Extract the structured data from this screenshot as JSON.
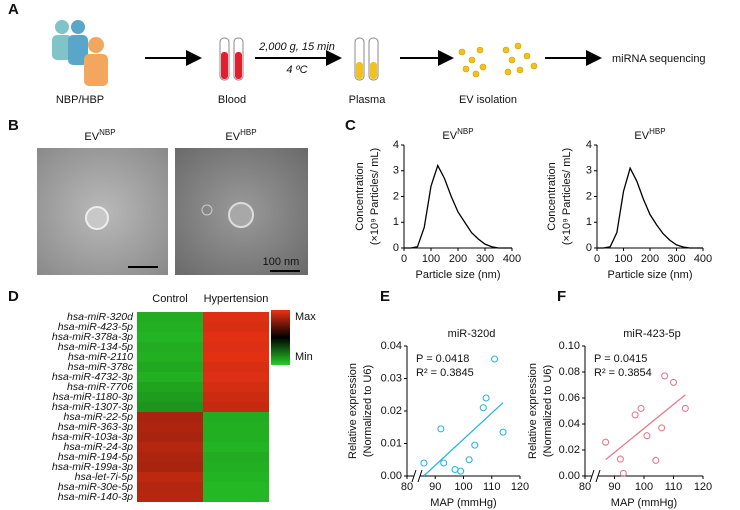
{
  "panel_labels": [
    "A",
    "B",
    "C",
    "D",
    "E",
    "F"
  ],
  "workflow": {
    "steps": [
      "NBP/HBP",
      "Blood",
      "Plasma",
      "EV isolation"
    ],
    "centrifuge": [
      "2,000 g, 15 min",
      "4 ºC"
    ],
    "end": "miRNA sequencing"
  },
  "micrographs": {
    "titles": [
      {
        "base": "EV",
        "sup": "NBP"
      },
      {
        "base": "EV",
        "sup": "HBP"
      }
    ],
    "scale_bar": "100 nm"
  },
  "chart_data": [
    {
      "type": "line",
      "title": {
        "base": "EV",
        "sup": "NBP"
      },
      "x_label": "Particle size (nm)",
      "y_label": [
        "Concentration",
        "(×10⁹ Particles/ mL)"
      ],
      "x": [
        0,
        25,
        50,
        75,
        100,
        125,
        150,
        175,
        200,
        225,
        250,
        275,
        300,
        325,
        350,
        375,
        400
      ],
      "values": [
        0,
        0,
        0.05,
        0.8,
        2.4,
        3.2,
        2.7,
        2,
        1.4,
        1,
        0.6,
        0.35,
        0.15,
        0.05,
        0,
        0,
        0
      ],
      "xlim": [
        0,
        400
      ],
      "ylim": [
        0,
        4
      ],
      "xticks": [
        0,
        100,
        200,
        300,
        400
      ],
      "yticks": [
        0,
        1,
        2,
        3,
        4
      ],
      "color": "#000000"
    },
    {
      "type": "line",
      "title": {
        "base": "EV",
        "sup": "HBP"
      },
      "x_label": "Particle size (nm)",
      "y_label": [
        "Concentration",
        "(×10⁹ Particles/ mL)"
      ],
      "x": [
        0,
        25,
        50,
        75,
        100,
        125,
        150,
        175,
        200,
        225,
        250,
        275,
        300,
        325,
        350,
        375,
        400
      ],
      "values": [
        0,
        0,
        0.05,
        0.6,
        2.2,
        3.1,
        2.6,
        1.9,
        1.3,
        0.9,
        0.55,
        0.3,
        0.12,
        0.04,
        0,
        0,
        0
      ],
      "xlim": [
        0,
        400
      ],
      "ylim": [
        0,
        4
      ],
      "xticks": [
        0,
        100,
        200,
        300,
        400
      ],
      "yticks": [
        0,
        1,
        2,
        3,
        4
      ],
      "color": "#000000"
    },
    {
      "type": "heatmap",
      "columns": [
        "Control",
        "Hypertension"
      ],
      "rows": [
        "hsa-miR-320d",
        "hsa-miR-423-5p",
        "hsa-miR-378a-3p",
        "hsa-miR-134-5p",
        "hsa-miR-2110",
        "hsa-miR-378c",
        "hsa-miR-4732-3p",
        "hsa-miR-7706",
        "hsa-miR-1180-3p",
        "hsa-miR-1307-3p",
        "hsa-miR-22-5p",
        "hsa-miR-363-3p",
        "hsa-miR-103a-3p",
        "hsa-miR-24-3p",
        "hsa-miR-194-5p",
        "hsa-miR-199a-3p",
        "hsa-let-7i-5p",
        "hsa-miR-30e-5p",
        "hsa-miR-140-3p"
      ],
      "values": [
        [
          0.08,
          0.97
        ],
        [
          0.07,
          0.96
        ],
        [
          0.06,
          0.98
        ],
        [
          0.08,
          0.97
        ],
        [
          0.07,
          0.98
        ],
        [
          0.09,
          0.96
        ],
        [
          0.07,
          0.97
        ],
        [
          0.1,
          0.95
        ],
        [
          0.12,
          0.93
        ],
        [
          0.14,
          0.92
        ],
        [
          0.86,
          0.08
        ],
        [
          0.87,
          0.07
        ],
        [
          0.86,
          0.07
        ],
        [
          0.88,
          0.06
        ],
        [
          0.87,
          0.08
        ],
        [
          0.86,
          0.07
        ],
        [
          0.9,
          0.06
        ],
        [
          0.88,
          0.05
        ],
        [
          0.89,
          0.05
        ]
      ],
      "clim": [
        0,
        1
      ],
      "colorbar_labels": {
        "max": "Max",
        "min": "Min"
      }
    },
    {
      "type": "scatter",
      "title": "miR-320d",
      "annotations": [
        "P = 0.0418",
        "R² = 0.3845"
      ],
      "x_label": "MAP (mmHg)",
      "y_label": [
        "Relative expression",
        "(Normalized to U6)"
      ],
      "x": [
        86,
        92,
        93,
        97,
        99,
        102,
        104,
        107,
        108,
        111,
        114
      ],
      "values": [
        0.004,
        0.0145,
        0.004,
        0.002,
        0.0015,
        0.005,
        0.0095,
        0.021,
        0.024,
        0.036,
        0.0135
      ],
      "xlim": [
        80,
        120
      ],
      "ylim": [
        0,
        0.04
      ],
      "xticks": [
        80,
        90,
        100,
        110,
        120
      ],
      "yticks": [
        {
          "value": 0,
          "label": "0.00"
        },
        0.01,
        0.02,
        0.03,
        0.04
      ],
      "color": "#29b6e0"
    },
    {
      "type": "scatter",
      "title": "miR-423-5p",
      "annotations": [
        "P = 0.0415",
        "R² = 0.3854"
      ],
      "x_label": "MAP (mmHg)",
      "y_label": [
        "Relative expression",
        "(Normalized to U6)"
      ],
      "x": [
        87,
        92,
        93,
        97,
        99,
        101,
        104,
        106,
        107,
        110,
        114
      ],
      "values": [
        0.026,
        0.013,
        0.002,
        0.047,
        0.052,
        0.031,
        0.012,
        0.037,
        0.077,
        0.072,
        0.052
      ],
      "xlim": [
        80,
        120
      ],
      "ylim": [
        0,
        0.1
      ],
      "xticks": [
        80,
        90,
        100,
        110,
        120
      ],
      "yticks": [
        {
          "value": 0,
          "label": "0.00"
        },
        0.02,
        0.04,
        0.06,
        0.08,
        {
          "value": 0.1,
          "label": "0.10"
        }
      ],
      "color": "#e57a8e"
    }
  ]
}
